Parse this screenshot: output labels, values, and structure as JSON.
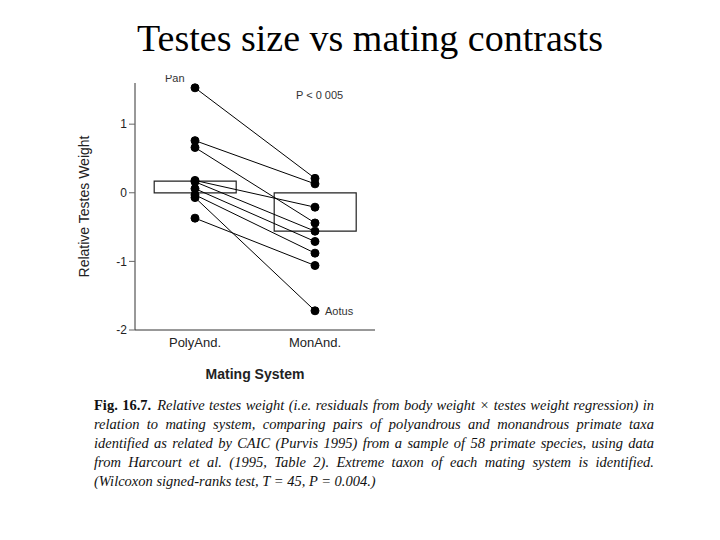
{
  "chart_data": {
    "type": "bar",
    "title": "Testes size vs mating contrasts",
    "x_label": "Mating System",
    "y_label": "Relative Testes Weight",
    "categories": [
      "PolyAnd.",
      "MonAnd."
    ],
    "values": [
      0.17,
      -0.56
    ],
    "color": "#ffffff",
    "pairs": [
      [
        1.53,
        0.21
      ],
      [
        0.76,
        0.13
      ],
      [
        0.66,
        -0.44
      ],
      [
        0.18,
        -0.21
      ],
      [
        0.16,
        -0.56
      ],
      [
        0.06,
        -0.71
      ],
      [
        -0.03,
        -0.88
      ],
      [
        -0.07,
        -1.72
      ],
      [
        -0.37,
        -1.06
      ]
    ],
    "pair_color": "#000000",
    "marker": "circle",
    "ylim": [
      -2,
      1.6
    ],
    "yticks": [
      -2,
      -1,
      0,
      1
    ],
    "annotations": [
      {
        "text": "Pan",
        "category": "PolyAnd.",
        "pair": 0
      },
      {
        "text": "Aotus",
        "category": "MonAnd.",
        "pair": 7
      },
      {
        "text": "P < 0 005"
      }
    ],
    "caption": {
      "label": "Fig. 16.7.",
      "text": "Relative testes weight (i.e. residuals from body weight × testes weight regression) in relation to mating system, comparing pairs of polyandrous and monandrous primate taxa identified as related by CAIC (Purvis 1995) from a sample of 58 primate species, using data from Harcourt et al. (1995, Table 2). Extreme taxon of each mating system is identified. (Wilcoxon signed-ranks test, T = 45, P = 0.004.)"
    }
  }
}
